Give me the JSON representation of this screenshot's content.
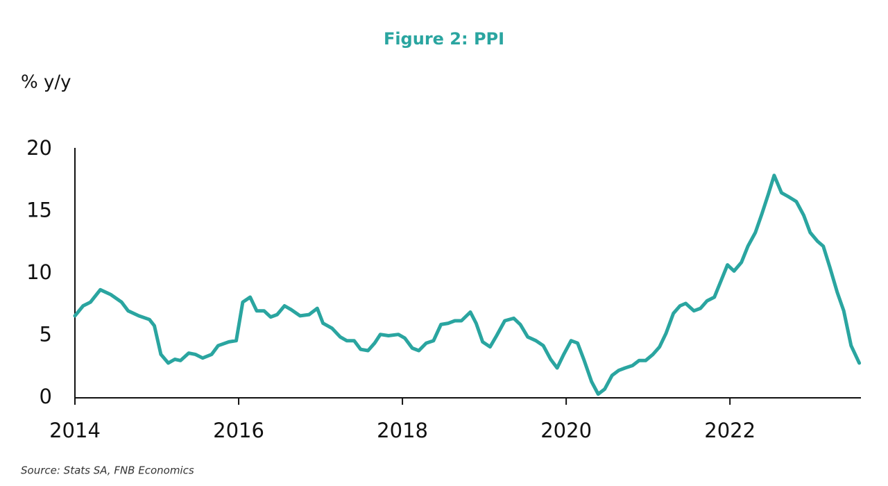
{
  "chart_data": {
    "type": "line",
    "title": "Figure 2: PPI",
    "y_label": "% y/y",
    "source": "Source: Stats SA, FNB Economics",
    "color": "#2aa5a0",
    "grid": false,
    "x": [
      2014.0,
      2014.1,
      2014.19,
      2014.31,
      2014.44,
      2014.57,
      2014.65,
      2014.78,
      2014.91,
      2014.97,
      2015.05,
      2015.14,
      2015.22,
      2015.29,
      2015.39,
      2015.47,
      2015.56,
      2015.67,
      2015.75,
      2015.88,
      2015.97,
      2016.05,
      2016.14,
      2016.22,
      2016.31,
      2016.39,
      2016.47,
      2016.56,
      2016.64,
      2016.75,
      2016.86,
      2016.96,
      2017.03,
      2017.14,
      2017.24,
      2017.32,
      2017.41,
      2017.49,
      2017.58,
      2017.66,
      2017.73,
      2017.83,
      2017.95,
      2018.03,
      2018.12,
      2018.2,
      2018.29,
      2018.38,
      2018.47,
      2018.56,
      2018.64,
      2018.72,
      2018.83,
      2018.9,
      2018.98,
      2019.07,
      2019.15,
      2019.25,
      2019.36,
      2019.44,
      2019.53,
      2019.63,
      2019.72,
      2019.81,
      2019.89,
      2019.97,
      2020.06,
      2020.14,
      2020.22,
      2020.31,
      2020.39,
      2020.47,
      2020.56,
      2020.64,
      2020.72,
      2020.81,
      2020.89,
      2020.97,
      2021.06,
      2021.14,
      2021.22,
      2021.31,
      2021.39,
      2021.46,
      2021.56,
      2021.64,
      2021.72,
      2021.81,
      2021.89,
      2021.97,
      2022.05,
      2022.14,
      2022.22,
      2022.31,
      2022.39,
      2022.47,
      2022.54,
      2022.63,
      2022.71,
      2022.81,
      2022.9,
      2022.98,
      2023.07,
      2023.14,
      2023.22,
      2023.31,
      2023.39,
      2023.48,
      2023.58
    ],
    "values": [
      6.6,
      7.4,
      7.7,
      8.7,
      8.3,
      7.7,
      7.0,
      6.6,
      6.3,
      5.8,
      3.5,
      2.8,
      3.1,
      3.0,
      3.6,
      3.5,
      3.2,
      3.5,
      4.2,
      4.5,
      4.6,
      7.7,
      8.1,
      7.0,
      7.0,
      6.5,
      6.7,
      7.4,
      7.1,
      6.6,
      6.7,
      7.2,
      6.0,
      5.6,
      4.9,
      4.6,
      4.6,
      3.9,
      3.8,
      4.4,
      5.1,
      5.0,
      5.1,
      4.8,
      4.0,
      3.8,
      4.4,
      4.6,
      5.9,
      6.0,
      6.2,
      6.2,
      6.9,
      6.0,
      4.5,
      4.1,
      5.0,
      6.2,
      6.4,
      5.9,
      4.9,
      4.6,
      4.2,
      3.1,
      2.4,
      3.5,
      4.6,
      4.4,
      3.0,
      1.3,
      0.3,
      0.7,
      1.8,
      2.2,
      2.4,
      2.6,
      3.0,
      3.0,
      3.5,
      4.1,
      5.2,
      6.8,
      7.4,
      7.6,
      7.0,
      7.2,
      7.8,
      8.1,
      9.4,
      10.7,
      10.2,
      10.9,
      12.2,
      13.3,
      14.8,
      16.4,
      17.9,
      16.5,
      16.2,
      15.8,
      14.7,
      13.3,
      12.6,
      12.2,
      10.5,
      8.5,
      7.0,
      4.2,
      2.8
    ],
    "xlim": [
      2014,
      2023.6
    ],
    "xticks": [
      2014,
      2016,
      2018,
      2020,
      2022
    ],
    "ylim": [
      0,
      20
    ],
    "yticks": [
      0,
      5,
      10,
      15,
      20
    ]
  }
}
